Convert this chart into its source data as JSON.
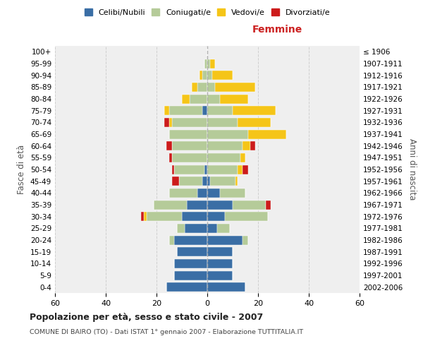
{
  "age_groups": [
    "0-4",
    "5-9",
    "10-14",
    "15-19",
    "20-24",
    "25-29",
    "30-34",
    "35-39",
    "40-44",
    "45-49",
    "50-54",
    "55-59",
    "60-64",
    "65-69",
    "70-74",
    "75-79",
    "80-84",
    "85-89",
    "90-94",
    "95-99",
    "100+"
  ],
  "birth_years": [
    "2002-2006",
    "1997-2001",
    "1992-1996",
    "1987-1991",
    "1982-1986",
    "1977-1981",
    "1972-1976",
    "1967-1971",
    "1962-1966",
    "1957-1961",
    "1952-1956",
    "1947-1951",
    "1942-1946",
    "1937-1941",
    "1932-1936",
    "1927-1931",
    "1922-1926",
    "1917-1921",
    "1912-1916",
    "1907-1911",
    "≤ 1906"
  ],
  "males": {
    "celibi": [
      16,
      13,
      13,
      12,
      13,
      9,
      10,
      8,
      4,
      2,
      1,
      0,
      0,
      0,
      0,
      2,
      0,
      0,
      0,
      0,
      0
    ],
    "coniugati": [
      0,
      0,
      0,
      0,
      2,
      3,
      14,
      13,
      11,
      9,
      12,
      14,
      14,
      15,
      14,
      13,
      7,
      4,
      2,
      1,
      0
    ],
    "vedovi": [
      0,
      0,
      0,
      0,
      0,
      0,
      1,
      0,
      0,
      0,
      0,
      0,
      0,
      0,
      1,
      2,
      3,
      2,
      1,
      0,
      0
    ],
    "divorziati": [
      0,
      0,
      0,
      0,
      0,
      0,
      1,
      0,
      0,
      3,
      1,
      1,
      2,
      0,
      2,
      0,
      0,
      0,
      0,
      0,
      0
    ]
  },
  "females": {
    "nubili": [
      15,
      10,
      10,
      10,
      14,
      4,
      7,
      10,
      5,
      1,
      0,
      0,
      0,
      0,
      0,
      0,
      0,
      0,
      0,
      0,
      0
    ],
    "coniugate": [
      0,
      0,
      0,
      0,
      2,
      5,
      17,
      13,
      10,
      10,
      12,
      13,
      14,
      16,
      12,
      10,
      5,
      3,
      2,
      1,
      0
    ],
    "vedove": [
      0,
      0,
      0,
      0,
      0,
      0,
      0,
      0,
      0,
      1,
      2,
      2,
      3,
      15,
      13,
      17,
      11,
      16,
      8,
      2,
      0
    ],
    "divorziate": [
      0,
      0,
      0,
      0,
      0,
      0,
      0,
      2,
      0,
      0,
      2,
      0,
      2,
      0,
      0,
      0,
      0,
      0,
      0,
      0,
      0
    ]
  },
  "colors": {
    "celibi": "#3A6EA5",
    "coniugati": "#B5CB99",
    "vedovi": "#F5C518",
    "divorziati": "#CC1B1B"
  },
  "xlim": 60,
  "title": "Popolazione per età, sesso e stato civile - 2007",
  "subtitle": "COMUNE DI BAIRO (TO) - Dati ISTAT 1° gennaio 2007 - Elaborazione TUTTITALIA.IT",
  "label_femmine": "Femmine",
  "ylabel_axis": "Fasce di età",
  "ylabel_right2": "Anni di nascita",
  "legend_labels": [
    "Celibi/Nubili",
    "Coniugati/e",
    "Vedovi/e",
    "Divorziati/e"
  ],
  "bg_color": "#FFFFFF",
  "plot_bg_color": "#EFEFEF"
}
